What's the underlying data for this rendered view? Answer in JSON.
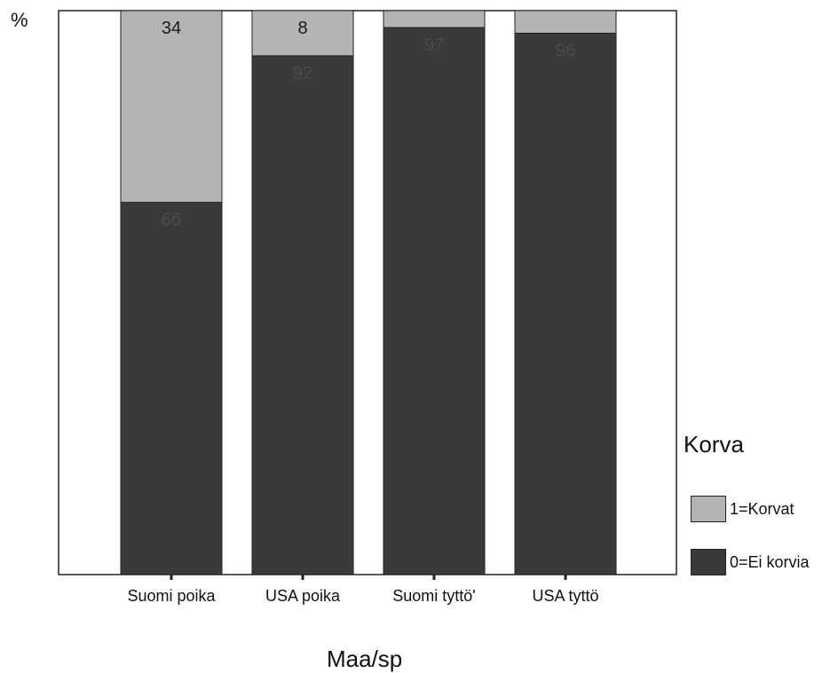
{
  "chart_data": {
    "type": "bar",
    "stacked": true,
    "categories": [
      "Suomi poika",
      "USA poika",
      "Suomi  tyttö'",
      "USA tyttö"
    ],
    "series": [
      {
        "name": "0=Ei korvia",
        "values": [
          66,
          92,
          97,
          96
        ],
        "color": "#3a3a3a"
      },
      {
        "name": "1=Korvat",
        "values": [
          34,
          8,
          3,
          4
        ],
        "color": "#b4b4b4"
      }
    ],
    "data_labels": [
      {
        "series": "1=Korvat",
        "category": "Suomi poika",
        "text": "34"
      },
      {
        "series": "1=Korvat",
        "category": "USA poika",
        "text": "8"
      },
      {
        "series": "0=Ei korvia",
        "category": "Suomi poika",
        "text": "66"
      },
      {
        "series": "0=Ei korvia",
        "category": "USA poika",
        "text": "92"
      },
      {
        "series": "0=Ei korvia",
        "category": "Suomi  tyttö'",
        "text": "97"
      },
      {
        "series": "0=Ei korvia",
        "category": "USA tyttö",
        "text": "96"
      }
    ],
    "ylabel": "%",
    "xlabel": "Maa/sp",
    "ylim": [
      0,
      100
    ],
    "grid": false,
    "legend": {
      "title": "Korva",
      "placement": "right"
    }
  }
}
